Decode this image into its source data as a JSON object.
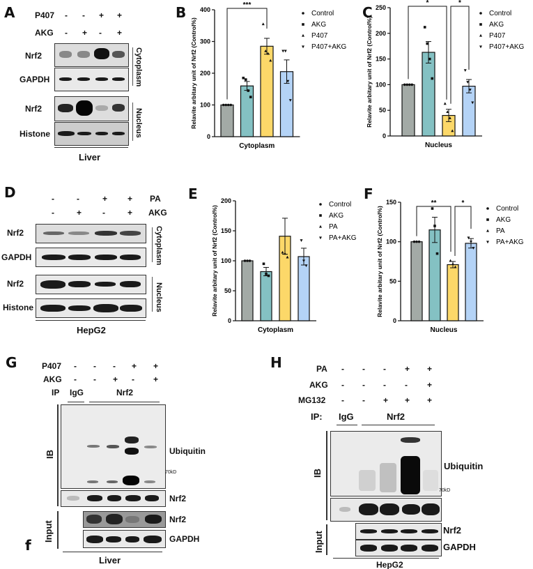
{
  "panels": {
    "A": {
      "label": "A",
      "rows": [
        {
          "name": "P407",
          "values": [
            "-",
            "-",
            "+",
            "+"
          ]
        },
        {
          "name": "AKG",
          "values": [
            "-",
            "+",
            "-",
            "+"
          ]
        }
      ],
      "blots": [
        "Nrf2",
        "GAPDH",
        "Nrf2",
        "Histone"
      ],
      "fractions": [
        "Cytoplasm",
        "Nucleus"
      ],
      "tissue": "Liver"
    },
    "D": {
      "label": "D",
      "rows": [
        {
          "name": "PA",
          "values": [
            "-",
            "-",
            "+",
            "+"
          ]
        },
        {
          "name": "AKG",
          "values": [
            "-",
            "+",
            "-",
            "+"
          ]
        }
      ],
      "blots": [
        "Nrf2",
        "GAPDH",
        "Nrf2",
        "Histone"
      ],
      "fractions": [
        "Cytoplasm",
        "Nucleus"
      ],
      "tissue": "HepG2"
    },
    "G": {
      "label": "G",
      "rows": [
        {
          "name": "P407",
          "values": [
            "-",
            "-",
            "-",
            "+",
            "+"
          ]
        },
        {
          "name": "AKG",
          "values": [
            "-",
            "-",
            "+",
            "-",
            "+"
          ]
        }
      ],
      "ip_label": "IP",
      "ip_groups": [
        "IgG",
        "Nrf2"
      ],
      "side_labels": [
        "IB",
        "Input"
      ],
      "blots": [
        "Ubiquitin",
        "Nrf2",
        "Nrf2",
        "GAPDH"
      ],
      "marker": "70kD",
      "extra_label": "f",
      "tissue": "Liver"
    },
    "H": {
      "label": "H",
      "rows": [
        {
          "name": "PA",
          "values": [
            "-",
            "-",
            "-",
            "+",
            "+"
          ]
        },
        {
          "name": "AKG",
          "values": [
            "-",
            "-",
            "-",
            "-",
            "+"
          ]
        },
        {
          "name": "MG132",
          "values": [
            "-",
            "-",
            "+",
            "+",
            "+"
          ]
        }
      ],
      "ip_label": "IP:",
      "ip_groups": [
        "IgG",
        "Nrf2"
      ],
      "side_labels": [
        "IB",
        "Input"
      ],
      "blots": [
        "Ubiquitin",
        "Nrf2",
        "GAPDH"
      ],
      "marker": "70kD",
      "tissue": "HepG2"
    }
  },
  "colors": {
    "control": "#a3aaa6",
    "akg": "#84c1c3",
    "treat": "#fcd869",
    "combo": "#b4d3f6"
  },
  "chart_data": [
    {
      "panel": "B",
      "type": "bar",
      "title": "",
      "categories": [
        "Control",
        "AKG",
        "P407",
        "P407+AKG"
      ],
      "values": [
        100,
        160,
        285,
        205
      ],
      "errors": [
        0,
        14,
        25,
        37
      ],
      "points": [
        [
          100,
          100,
          100,
          100
        ],
        [
          185,
          180,
          145,
          125
        ],
        [
          355,
          270,
          262,
          240
        ],
        [
          270,
          270,
          175,
          115
        ]
      ],
      "xlabel": "Cytoplasm",
      "ylabel": "Relavite arbitary unit of Nrf2 (Control%)",
      "ylim": [
        0,
        400
      ],
      "yticks": [
        0,
        100,
        200,
        300,
        400
      ],
      "significance": [
        {
          "from": 0,
          "to": 2,
          "label": "***"
        }
      ],
      "legend": [
        "Control",
        "AKG",
        "P407",
        "P407+AKG"
      ],
      "legend_position": "right"
    },
    {
      "panel": "C",
      "type": "bar",
      "title": "",
      "categories": [
        "Control",
        "AKG",
        "P407",
        "P407+AKG"
      ],
      "values": [
        100,
        163,
        40,
        97
      ],
      "errors": [
        0,
        21,
        12,
        13
      ],
      "points": [
        [
          100,
          100,
          100,
          100
        ],
        [
          212,
          180,
          150,
          112
        ],
        [
          63,
          47,
          35,
          10
        ],
        [
          128,
          105,
          90,
          65
        ]
      ],
      "xlabel": "Nucleus",
      "ylabel": "Relavite arbitary unit of Nrf2 (Control%)",
      "ylim": [
        0,
        250
      ],
      "yticks": [
        0,
        50,
        100,
        150,
        200,
        250
      ],
      "significance": [
        {
          "from": 0,
          "to": 2,
          "label": "*"
        },
        {
          "from": 2,
          "to": 3,
          "label": "*"
        }
      ],
      "legend": [
        "Control",
        "AKG",
        "P407",
        "P407+AKG"
      ],
      "legend_position": "right"
    },
    {
      "panel": "E",
      "type": "bar",
      "title": "",
      "categories": [
        "Control",
        "AKG",
        "PA",
        "PA+AKG"
      ],
      "values": [
        100,
        82,
        141,
        107
      ],
      "errors": [
        0,
        7,
        30,
        14
      ],
      "points": [
        [
          100,
          100,
          100
        ],
        [
          95,
          78,
          75
        ],
        [
          114,
          112,
          106
        ],
        [
          134,
          100,
          92
        ]
      ],
      "xlabel": "Cytoplasm",
      "ylabel": "Relavite arbitary unit of Nrf2 (Control%)",
      "ylim": [
        0,
        200
      ],
      "yticks": [
        0,
        50,
        100,
        150,
        200
      ],
      "significance": [],
      "legend": [
        "Control",
        "AKG",
        "PA",
        "PA+AKG"
      ],
      "legend_position": "right"
    },
    {
      "panel": "F",
      "type": "bar",
      "title": "",
      "categories": [
        "Control",
        "AKG",
        "PA",
        "PA+AKG"
      ],
      "values": [
        100,
        115,
        71,
        98
      ],
      "errors": [
        0,
        16,
        4,
        6
      ],
      "points": [
        [
          100,
          100,
          100
        ],
        [
          142,
          120,
          85
        ],
        [
          76,
          72,
          68
        ],
        [
          105,
          100,
          92
        ]
      ],
      "xlabel": "Nucleus",
      "ylabel": "Relavite arbitary unit of Nrf2 (Control%)",
      "ylim": [
        0,
        150
      ],
      "yticks": [
        0,
        50,
        100,
        150
      ],
      "significance": [
        {
          "from": 0,
          "to": 2,
          "label": "**"
        },
        {
          "from": 2,
          "to": 3,
          "label": "*"
        }
      ],
      "legend": [
        "Control",
        "AKG",
        "PA",
        "PA+AKG"
      ],
      "legend_position": "right"
    }
  ]
}
